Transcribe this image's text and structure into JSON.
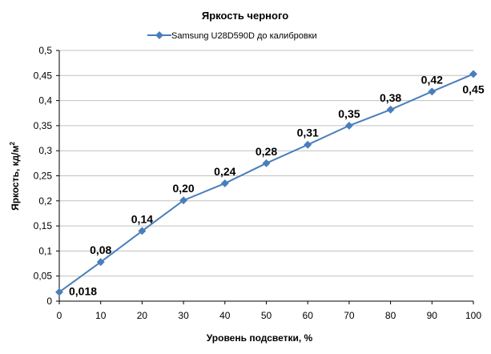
{
  "chart_data": {
    "type": "line",
    "title": "Яркость черного",
    "xlabel": "Уровень подсветки, %",
    "ylabel": "Яркость, кд/м",
    "ylabel_sup": "2",
    "x": [
      0,
      10,
      20,
      30,
      40,
      50,
      60,
      70,
      80,
      90,
      100
    ],
    "series": [
      {
        "name": "Samsung U28D590D  до калибровки",
        "values": [
          0.018,
          0.078,
          0.14,
          0.201,
          0.235,
          0.275,
          0.312,
          0.35,
          0.382,
          0.418,
          0.453
        ],
        "labels": [
          "0,018",
          "0,08",
          "0,14",
          "0,20",
          "0,24",
          "0,28",
          "0,31",
          "0,35",
          "0,38",
          "0,42",
          "0,45"
        ]
      }
    ],
    "xlim": [
      0,
      100
    ],
    "ylim": [
      0,
      0.5
    ],
    "x_ticks": [
      "0",
      "10",
      "20",
      "30",
      "40",
      "50",
      "60",
      "70",
      "80",
      "90",
      "100"
    ],
    "y_ticks": [
      "0",
      "0,05",
      "0,1",
      "0,15",
      "0,2",
      "0,25",
      "0,3",
      "0,35",
      "0,4",
      "0,45",
      "0,5"
    ],
    "legend_position": "top",
    "grid": "horizontal",
    "colors": {
      "series": "#4a7ebb",
      "grid": "#c0c0c0",
      "axis": "#000000"
    }
  }
}
